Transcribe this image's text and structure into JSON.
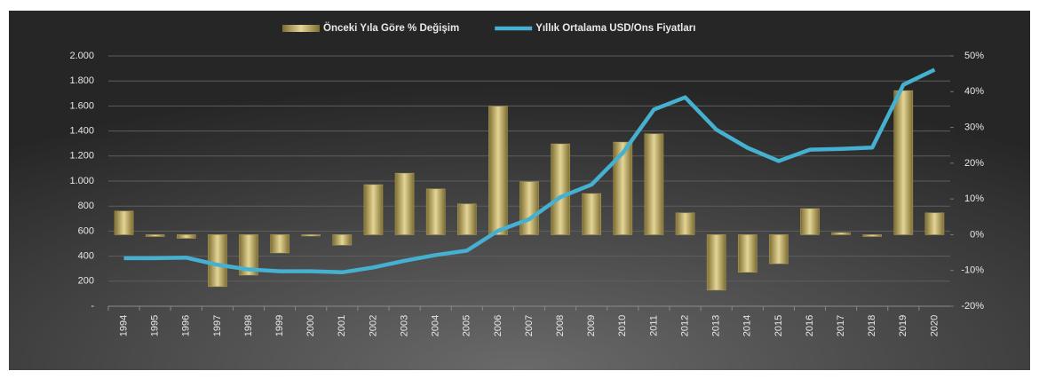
{
  "chart_data": {
    "type": "bar_line",
    "categories": [
      "1994",
      "1995",
      "1996",
      "1997",
      "1998",
      "1999",
      "2000",
      "2001",
      "2002",
      "2003",
      "2004",
      "2005",
      "2006",
      "2007",
      "2008",
      "2009",
      "2010",
      "2011",
      "2012",
      "2013",
      "2014",
      "2015",
      "2016",
      "2017",
      "2018",
      "2019",
      "2020"
    ],
    "series": [
      {
        "name": "Önceki Yıla Göre % Değişim",
        "type": "bar",
        "axis": "y2",
        "color": "#b8a456",
        "values": [
          6.6,
          -0.5,
          -1,
          -14.5,
          -11.3,
          -5.1,
          -0.3,
          -2.9,
          14,
          17.2,
          12.8,
          8.6,
          35.9,
          14.8,
          25.4,
          11.5,
          25.9,
          28.2,
          6.1,
          -15.5,
          -10.5,
          -8.1,
          7.3,
          0.6,
          -0.5,
          40.3,
          6.1
        ]
      },
      {
        "name": "Yıllık Ortalama USD/Ons Fiyatları",
        "type": "line",
        "axis": "y",
        "color": "#45b0cf",
        "values": [
          384,
          384,
          388,
          331,
          294,
          279,
          279,
          271,
          310,
          363,
          409,
          444,
          603,
          695,
          872,
          972,
          1225,
          1572,
          1669,
          1411,
          1266,
          1160,
          1251,
          1257,
          1268,
          1770,
          1890
        ]
      }
    ],
    "ylim": [
      0,
      2000
    ],
    "yticks": [
      {
        "value": 0,
        "label": "-"
      },
      200,
      400,
      600,
      800,
      {
        "value": 1000,
        "label": "1.000"
      },
      {
        "value": 1200,
        "label": "1.200"
      },
      {
        "value": 1400,
        "label": "1.400"
      },
      {
        "value": 1600,
        "label": "1.600"
      },
      {
        "value": 1800,
        "label": "1.800"
      },
      {
        "value": 2000,
        "label": "2.000"
      }
    ],
    "y2lim": [
      -20,
      50
    ],
    "y2ticks": [
      {
        "value": -20,
        "label": "-20%"
      },
      {
        "value": -10,
        "label": "-10%"
      },
      {
        "value": 0,
        "label": "0%"
      },
      {
        "value": 10,
        "label": "10%"
      },
      {
        "value": 20,
        "label": "20%"
      },
      {
        "value": 30,
        "label": "30%"
      },
      {
        "value": 40,
        "label": "40%"
      },
      {
        "value": 50,
        "label": "50%"
      }
    ],
    "grid": true
  }
}
